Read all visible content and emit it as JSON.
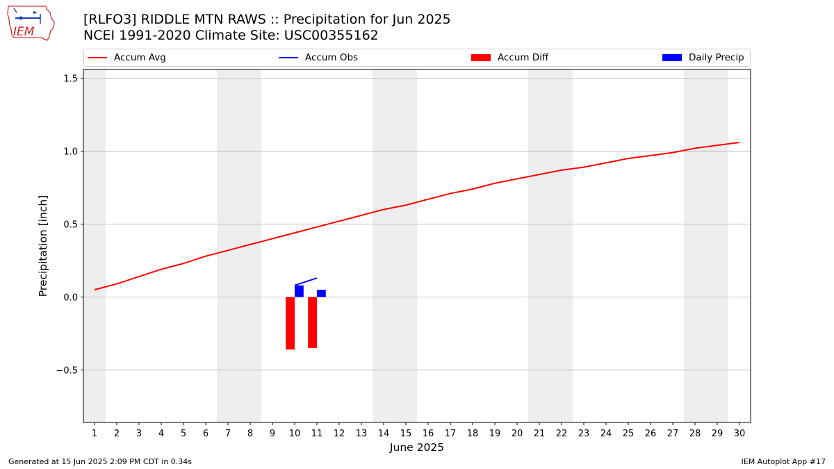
{
  "title_line1": "[RLFO3] RIDDLE MTN RAWS :: Precipitation for Jun 2025",
  "title_line2": "NCEI 1991-2020 Climate Site: USC00355162",
  "logo_text": "IEM",
  "footer_left": "Generated at 15 Jun 2025 2:09 PM CDT in 0.34s",
  "footer_right": "IEM Autoplot App #17",
  "colors": {
    "avg": "#ff0000",
    "obs": "#0000ff",
    "diff": "#ff0000",
    "daily": "#0000ff",
    "weekend": "#eeeeee",
    "grid": "#b0b0b0"
  },
  "legend": [
    {
      "label": "Accum Avg",
      "kind": "line",
      "color": "#ff0000"
    },
    {
      "label": "Accum Obs",
      "kind": "line",
      "color": "#0000ff"
    },
    {
      "label": "Accum Diff",
      "kind": "bar",
      "color": "#ff0000"
    },
    {
      "label": "Daily Precip",
      "kind": "bar",
      "color": "#0000ff"
    }
  ],
  "chart_data": {
    "type": "line",
    "xlabel": "June 2025",
    "ylabel": "Precipitation [inch]",
    "xlim": [
      0.5,
      30.5
    ],
    "ylim": [
      -0.86,
      1.56
    ],
    "yticks": [
      -0.5,
      0.0,
      0.5,
      1.0,
      1.5
    ],
    "ytick_labels": [
      "−0.5",
      "0.0",
      "0.5",
      "1.0",
      "1.5"
    ],
    "xticks": [
      1,
      2,
      3,
      4,
      5,
      6,
      7,
      8,
      9,
      10,
      11,
      12,
      13,
      14,
      15,
      16,
      17,
      18,
      19,
      20,
      21,
      22,
      23,
      24,
      25,
      26,
      27,
      28,
      29,
      30
    ],
    "grid": "horizontal",
    "legend_position": "top",
    "weekend_spans": [
      [
        0.5,
        1.5
      ],
      [
        6.5,
        8.5
      ],
      [
        13.5,
        15.5
      ],
      [
        20.5,
        22.5
      ],
      [
        27.5,
        29.5
      ]
    ],
    "accum_avg": {
      "name": "Accum Avg",
      "x": [
        1,
        2,
        3,
        4,
        5,
        6,
        7,
        8,
        9,
        10,
        11,
        12,
        13,
        14,
        15,
        16,
        17,
        18,
        19,
        20,
        21,
        22,
        23,
        24,
        25,
        26,
        27,
        28,
        29,
        30
      ],
      "y": [
        0.05,
        0.09,
        0.14,
        0.19,
        0.23,
        0.28,
        0.32,
        0.36,
        0.4,
        0.44,
        0.48,
        0.52,
        0.56,
        0.6,
        0.63,
        0.67,
        0.71,
        0.74,
        0.78,
        0.81,
        0.84,
        0.87,
        0.89,
        0.92,
        0.95,
        0.97,
        0.99,
        1.02,
        1.04,
        1.06
      ]
    },
    "accum_obs": {
      "name": "Accum Obs",
      "x": [
        10,
        11
      ],
      "y": [
        0.08,
        0.13
      ]
    },
    "accum_diff": {
      "name": "Accum Diff",
      "x": [
        10,
        11
      ],
      "y": [
        -0.36,
        -0.35
      ]
    },
    "daily_precip": {
      "name": "Daily Precip",
      "x": [
        10,
        11
      ],
      "y": [
        0.08,
        0.05
      ]
    }
  }
}
